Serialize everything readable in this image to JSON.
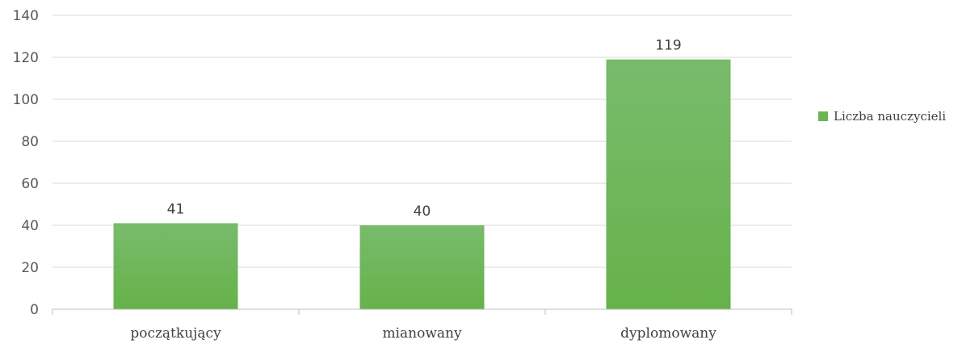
{
  "chart_data": {
    "type": "bar",
    "categories": [
      "początkujący",
      "mianowany",
      "dyplomowany"
    ],
    "series": [
      {
        "name": "Liczba nauczycieli",
        "values": [
          41,
          40,
          119
        ],
        "color": "#6ab655"
      }
    ],
    "data_labels": [
      "41",
      "40",
      "119"
    ],
    "ylim": [
      0,
      140
    ],
    "yticks": [
      0,
      20,
      40,
      60,
      80,
      100,
      120,
      140
    ],
    "ytick_labels": [
      "0",
      "20",
      "40",
      "60",
      "80",
      "100",
      "120",
      "140"
    ],
    "title": "",
    "xlabel": "",
    "ylabel": "",
    "grid": true,
    "legend_position": "right"
  }
}
